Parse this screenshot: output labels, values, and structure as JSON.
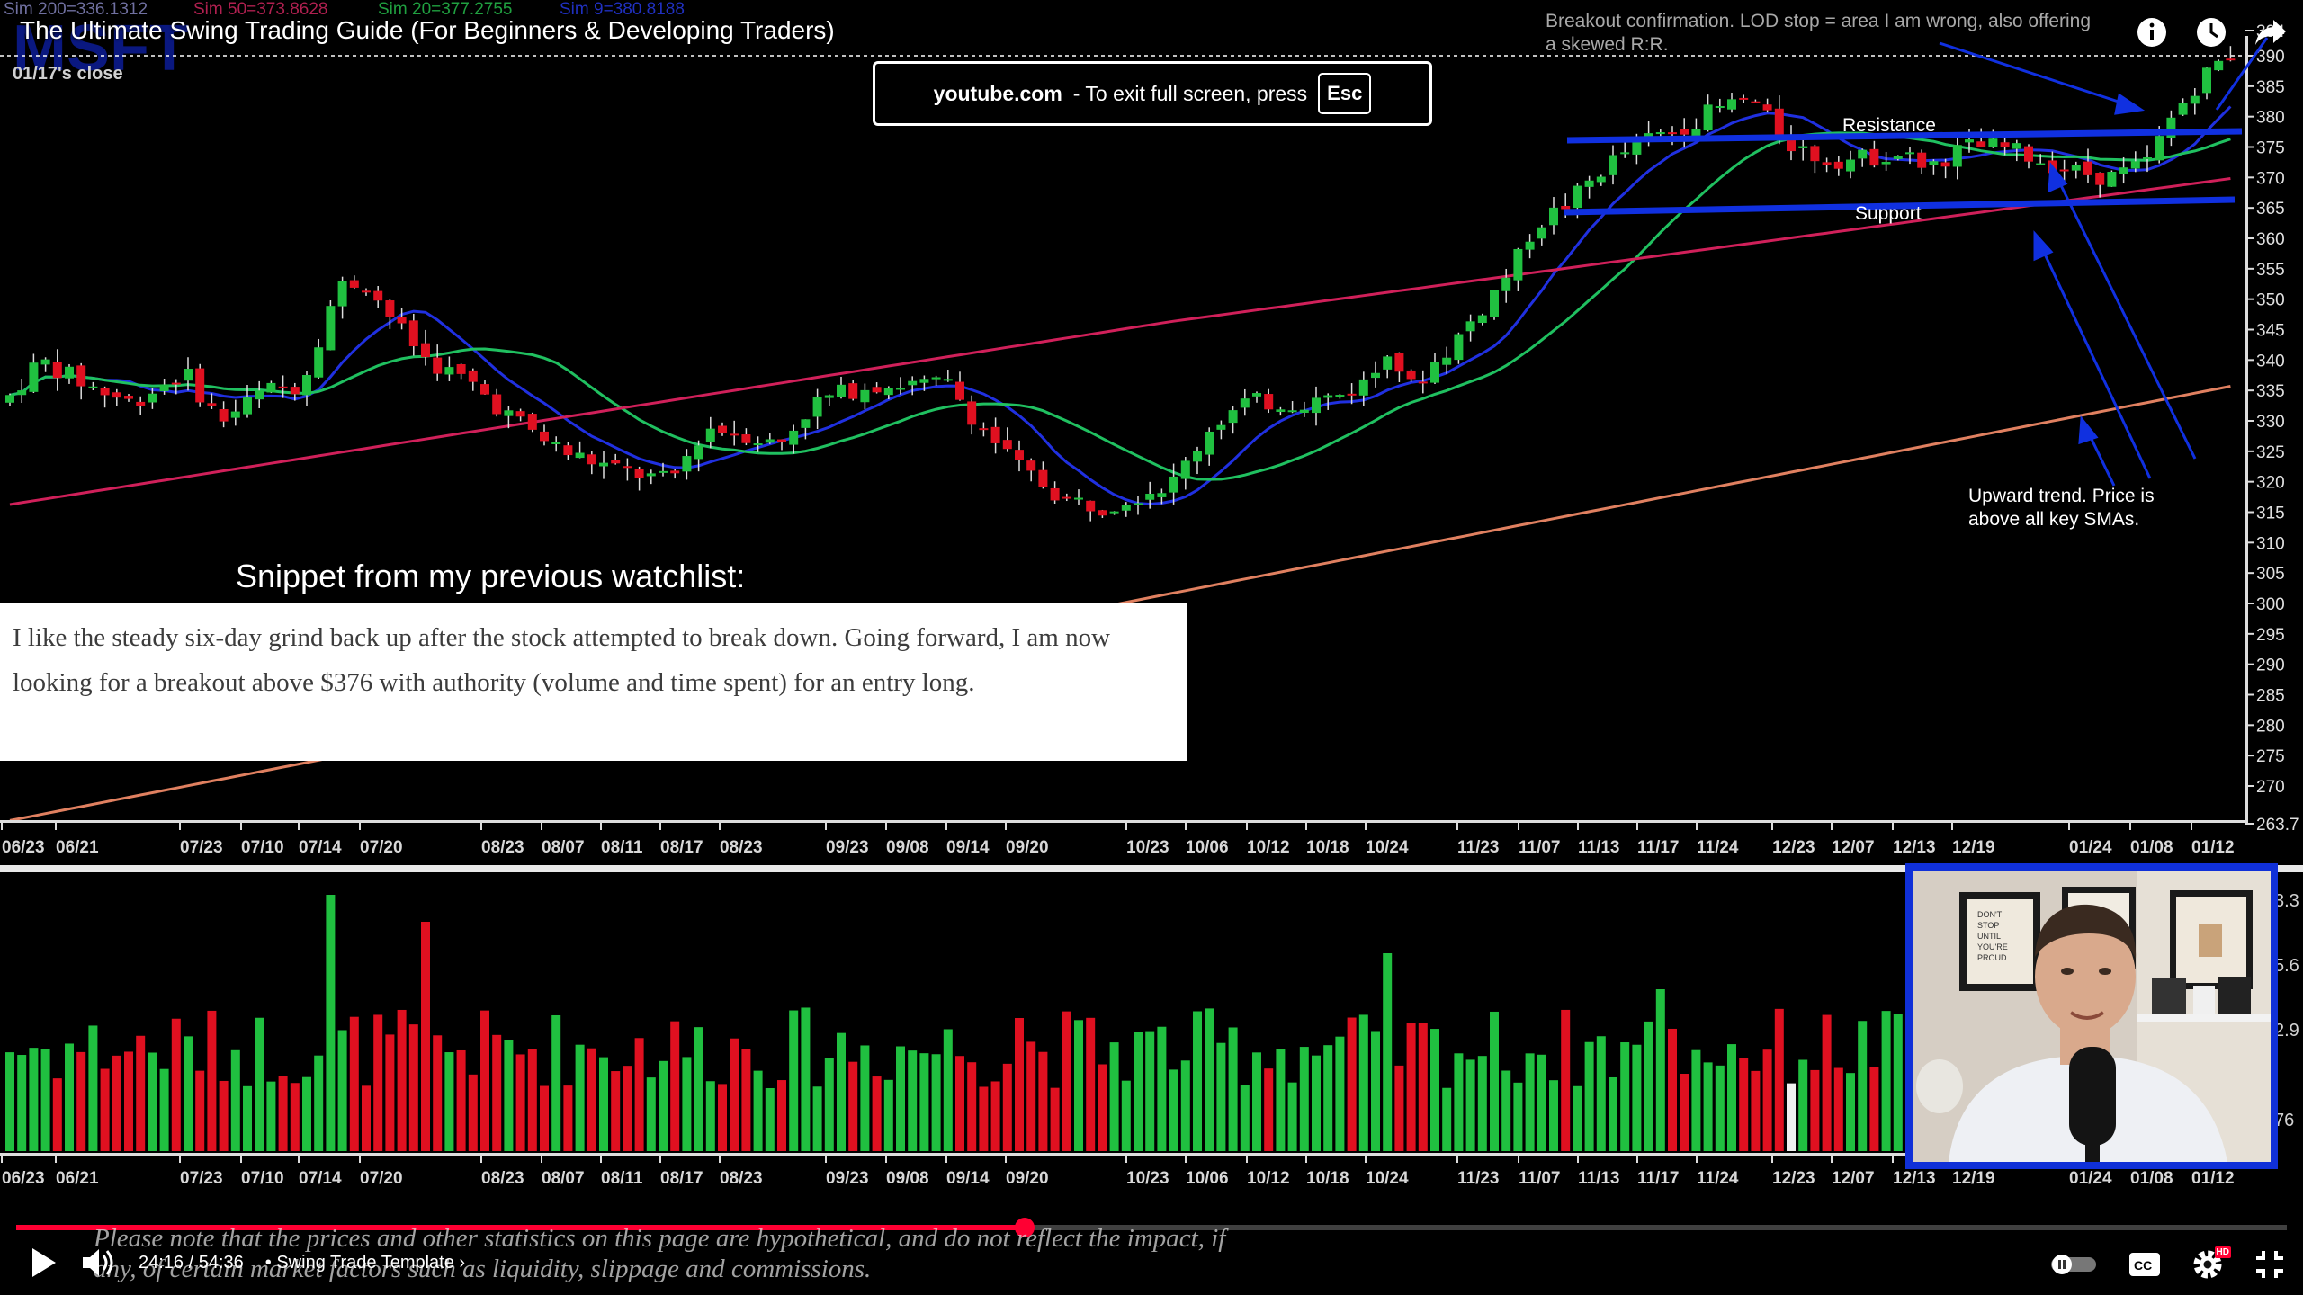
{
  "video": {
    "title": "The Ultimate Swing Trading Guide (For Beginners & Developing Traders)"
  },
  "fullscreen_toast": {
    "host": "youtube.com",
    "message": "-  To exit full screen, press",
    "key": "Esc"
  },
  "chart": {
    "ticker_watermark": "MSFT",
    "sma_legend": [
      "Sim 200=336.1312",
      "Sim 50=373.8628",
      "Sim 20=377.2755",
      "Sim 9=380.8188"
    ],
    "close_label": "01/17's close",
    "annotations": {
      "breakout": "Breakout confirmation. LOD stop = area I am wrong, also offering a skewed R:R.",
      "resistance": "Resistance",
      "support": "Support",
      "trend_line1": "Upward trend. Price is",
      "trend_line2": "above all key SMAs."
    },
    "volume_scale_partial": [
      "3.3",
      "5.6",
      "2.9",
      "76"
    ]
  },
  "chart_data": {
    "type": "candlestick",
    "price_axis_ticks": [
      "394",
      "390",
      "385",
      "380",
      "375",
      "370",
      "365",
      "360",
      "355",
      "350",
      "345",
      "340",
      "335",
      "330",
      "325",
      "320",
      "315",
      "310",
      "305",
      "300",
      "295",
      "290",
      "285",
      "280",
      "275",
      "270",
      "263.7"
    ],
    "date_ticks": [
      "06/23",
      "06/21",
      "07/23",
      "07/10",
      "07/14",
      "07/20",
      "08/23",
      "08/07",
      "08/11",
      "08/17",
      "08/23",
      "09/23",
      "09/08",
      "09/14",
      "09/20",
      "10/23",
      "10/06",
      "10/12",
      "10/18",
      "10/24",
      "11/23",
      "11/07",
      "11/13",
      "11/17",
      "11/24",
      "12/23",
      "12/07",
      "12/13",
      "12/19",
      "01/24",
      "01/08",
      "01/12"
    ],
    "resistance_level": 376,
    "support_level": 365,
    "colors": {
      "up": "#20c040",
      "down": "#e01020",
      "sma9": "#2030e0",
      "sma20": "#20c060",
      "sma50": "#d0205a",
      "sma200": "#e08060",
      "annotation": "#1030e0"
    }
  },
  "watchlist": {
    "heading": "Snippet from my previous watchlist:",
    "text": "I like the steady six-day grind back up after the stock attempted to break down. Going forward, I am now looking for a breakout above $376 with authority (volume and time spent) for an entry long."
  },
  "webcam": {
    "poster_text": "DON'T STOP UNTIL YOU'RE PROUD"
  },
  "player": {
    "disclaimer": "Please note that the prices and other statistics on this page are hypothetical, and do not reflect the impact, if any, of certain market factors such as liquidity, slippage and commissions.",
    "time": "24:16 / 54:36",
    "chapter": "• Swing Trade Template",
    "progress": 0.444,
    "icons": {
      "play": "play-icon",
      "volume": "volume-icon",
      "autoplay": "autoplay-toggle-icon",
      "captions": "captions-icon",
      "settings": "settings-gear-icon",
      "exit_fullscreen": "exit-fullscreen-icon",
      "info": "info-icon",
      "watch_later": "clock-icon",
      "share": "share-icon"
    },
    "hd_badge": "HD",
    "cc_label": "CC"
  }
}
